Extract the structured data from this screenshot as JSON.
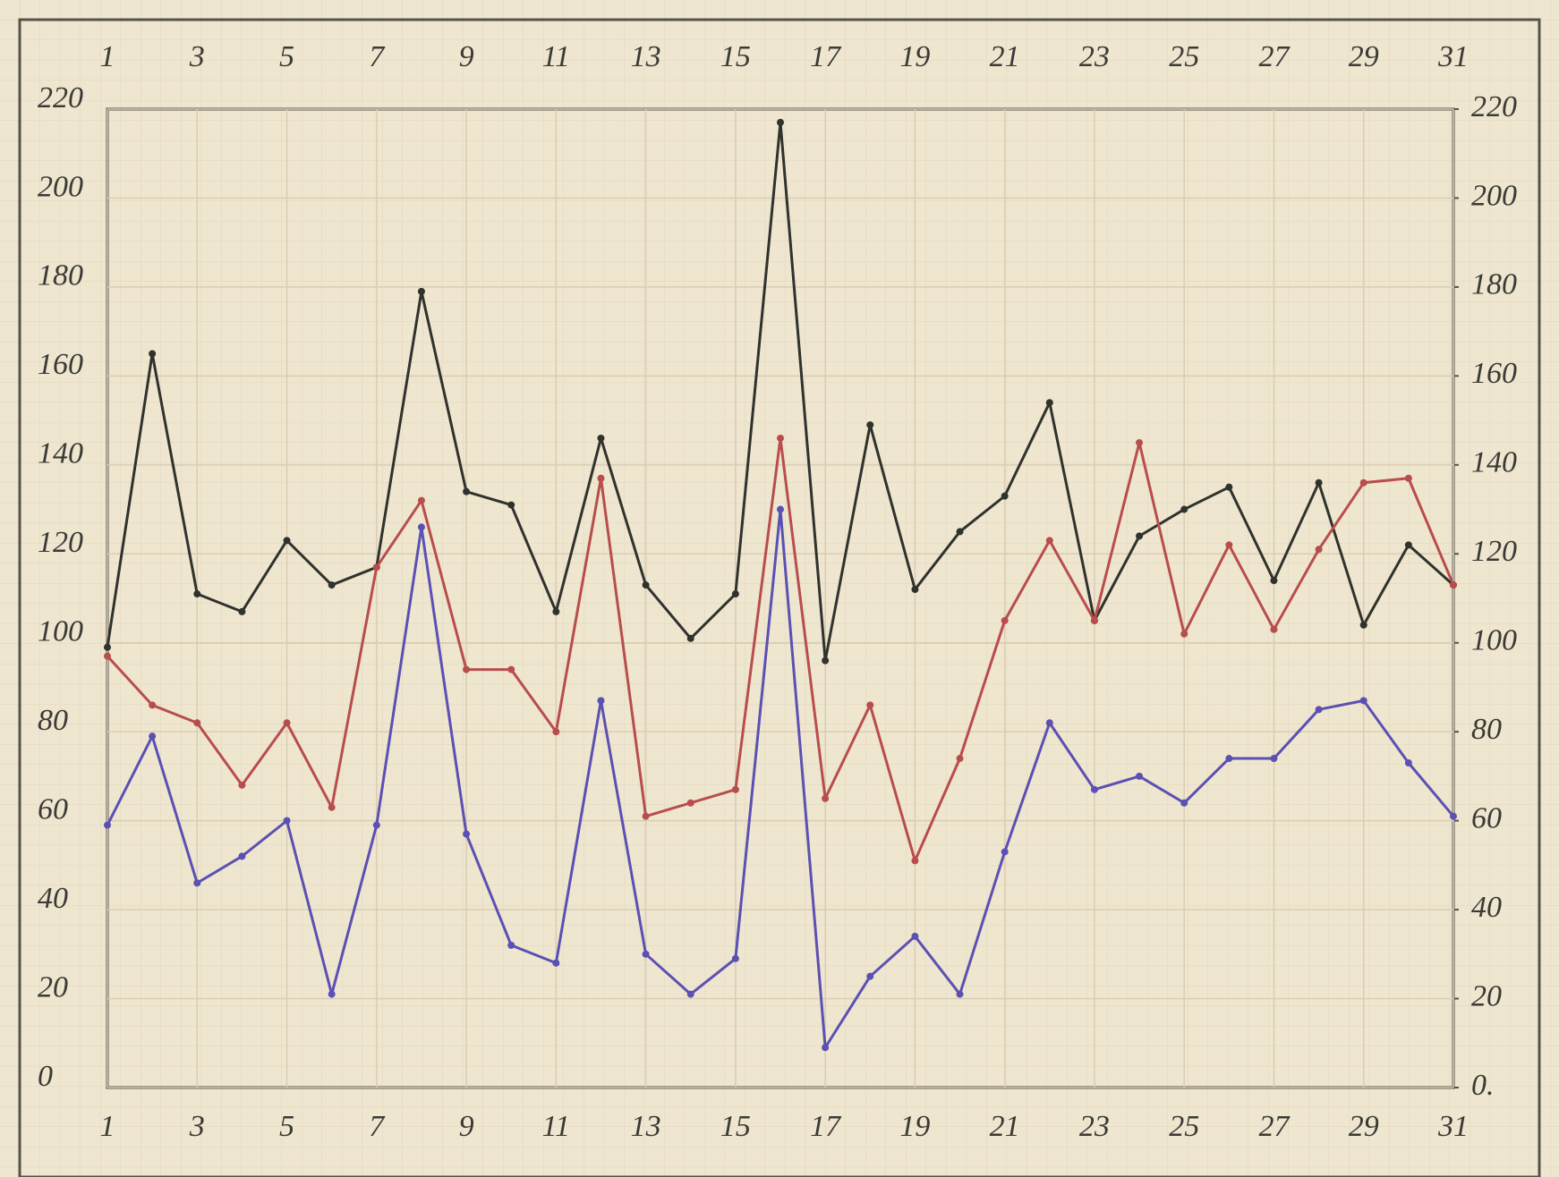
{
  "chart_data": {
    "type": "line",
    "x": [
      1,
      2,
      3,
      4,
      5,
      6,
      7,
      8,
      9,
      10,
      11,
      12,
      13,
      14,
      15,
      16,
      17,
      18,
      19,
      20,
      21,
      22,
      23,
      24,
      25,
      26,
      27,
      28,
      29,
      30,
      31
    ],
    "xlim": [
      1,
      31
    ],
    "xticks": [
      1,
      3,
      5,
      7,
      9,
      11,
      13,
      15,
      17,
      19,
      21,
      23,
      25,
      27,
      29,
      31
    ],
    "ylim": [
      0,
      220
    ],
    "yticks": [
      0,
      20,
      40,
      60,
      80,
      100,
      120,
      140,
      160,
      180,
      200,
      220
    ],
    "y2lim": [
      0,
      220
    ],
    "y2ticks": [
      {
        "value": 0,
        "label": "0."
      },
      20,
      40,
      60,
      80,
      100,
      120,
      140,
      160,
      180,
      200,
      220
    ],
    "grid": true,
    "series": [
      {
        "color": "#2f322d",
        "values": [
          99,
          165,
          111,
          107,
          123,
          113,
          117,
          179,
          134,
          131,
          107,
          146,
          113,
          101,
          111,
          217,
          96,
          149,
          112,
          125,
          133,
          154,
          105,
          124,
          130,
          135,
          114,
          136,
          104,
          122,
          113
        ]
      },
      {
        "color": "#b84d4d",
        "values": [
          97,
          86,
          82,
          68,
          82,
          63,
          117,
          132,
          94,
          94,
          80,
          137,
          61,
          64,
          67,
          146,
          65,
          86,
          51,
          74,
          105,
          123,
          105,
          145,
          102,
          122,
          103,
          121,
          136,
          137,
          113
        ]
      },
      {
        "color": "#5b50b3",
        "values": [
          59,
          79,
          46,
          52,
          60,
          21,
          59,
          126,
          57,
          32,
          28,
          87,
          30,
          21,
          29,
          130,
          9,
          25,
          34,
          21,
          53,
          82,
          67,
          70,
          64,
          74,
          74,
          85,
          87,
          73,
          61
        ]
      }
    ]
  }
}
